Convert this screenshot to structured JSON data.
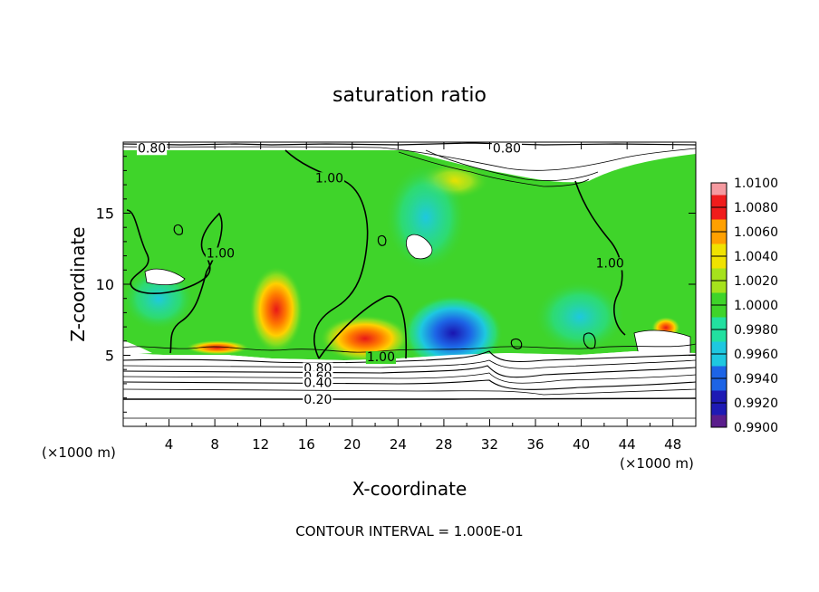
{
  "chart_data": {
    "type": "heatmap",
    "title": "saturation ratio",
    "xlabel": "X-coordinate",
    "ylabel": "Z-coordinate",
    "x_unit_left": "(×1000 m)",
    "x_unit_right": "(×1000 m)",
    "xlim": [
      0,
      50
    ],
    "ylim": [
      0,
      20
    ],
    "xticks": [
      4,
      8,
      12,
      16,
      20,
      24,
      28,
      32,
      36,
      40,
      44,
      48
    ],
    "yticks": [
      5,
      10,
      15
    ],
    "footer": "CONTOUR INTERVAL = 1.000E-01",
    "colorbar": {
      "levels": [
        0.99,
        0.992,
        0.994,
        0.996,
        0.998,
        1.0,
        1.002,
        1.004,
        1.006,
        1.008,
        1.01
      ],
      "labels": [
        "0.9900",
        "0.9920",
        "0.9940",
        "0.9960",
        "0.9980",
        "1.0000",
        "1.0020",
        "1.0040",
        "1.0060",
        "1.0080",
        "1.0100"
      ],
      "colors": [
        "#5a1d8c",
        "#1e1ab4",
        "#1d64e6",
        "#1ec8e0",
        "#22e0a0",
        "#3fd42a",
        "#a6e21c",
        "#f0e200",
        "#ffa000",
        "#f01c1c",
        "#f59aa0"
      ]
    },
    "contour_labels": [
      {
        "text": "0.80",
        "x": 2.5,
        "z": 19.6
      },
      {
        "text": "0.80",
        "x": 33.5,
        "z": 19.6
      },
      {
        "text": "1.00",
        "x": 18.0,
        "z": 17.5
      },
      {
        "text": "1.00",
        "x": 8.5,
        "z": 12.2
      },
      {
        "text": "1.00",
        "x": 42.5,
        "z": 11.5
      },
      {
        "text": "1.00",
        "x": 22.5,
        "z": 4.9
      },
      {
        "text": "0.80",
        "x": 17.0,
        "z": 4.1
      },
      {
        "text": "0.60",
        "x": 17.0,
        "z": 3.5
      },
      {
        "text": "0.40",
        "x": 17.0,
        "z": 3.1
      },
      {
        "text": "0.20",
        "x": 17.0,
        "z": 1.9
      }
    ]
  }
}
